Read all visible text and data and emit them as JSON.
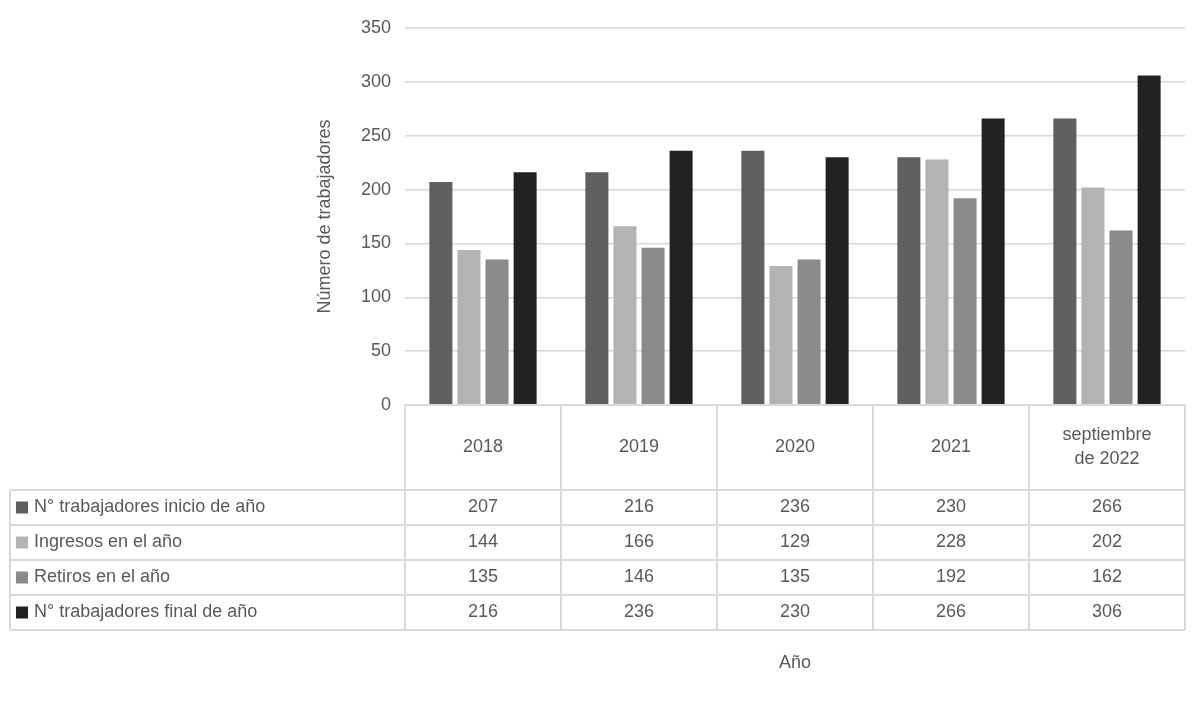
{
  "chart_data": {
    "type": "bar",
    "annotations": [
      "Año"
    ],
    "ylabel": "Número de trabajadores",
    "categories": [
      "2018",
      "2019",
      "2020",
      "2021",
      "septiembre de 2022"
    ],
    "series": [
      {
        "name": "N° trabajadores inicio de año",
        "color": "#5f5f5f",
        "values": [
          207,
          216,
          236,
          230,
          266
        ]
      },
      {
        "name": "Ingresos en el año",
        "color": "#b3b3b3",
        "values": [
          144,
          166,
          129,
          228,
          202
        ]
      },
      {
        "name": "Retiros en el año",
        "color": "#8a8a8a",
        "values": [
          135,
          146,
          135,
          192,
          162
        ]
      },
      {
        "name": "N° trabajadores final de año",
        "color": "#222222",
        "values": [
          216,
          236,
          230,
          266,
          306
        ]
      }
    ],
    "ylim": [
      0,
      350
    ],
    "yticks": [
      0,
      50,
      100,
      150,
      200,
      250,
      300,
      350
    ],
    "grid": "y",
    "legend": "bottom",
    "data_labels": true
  }
}
